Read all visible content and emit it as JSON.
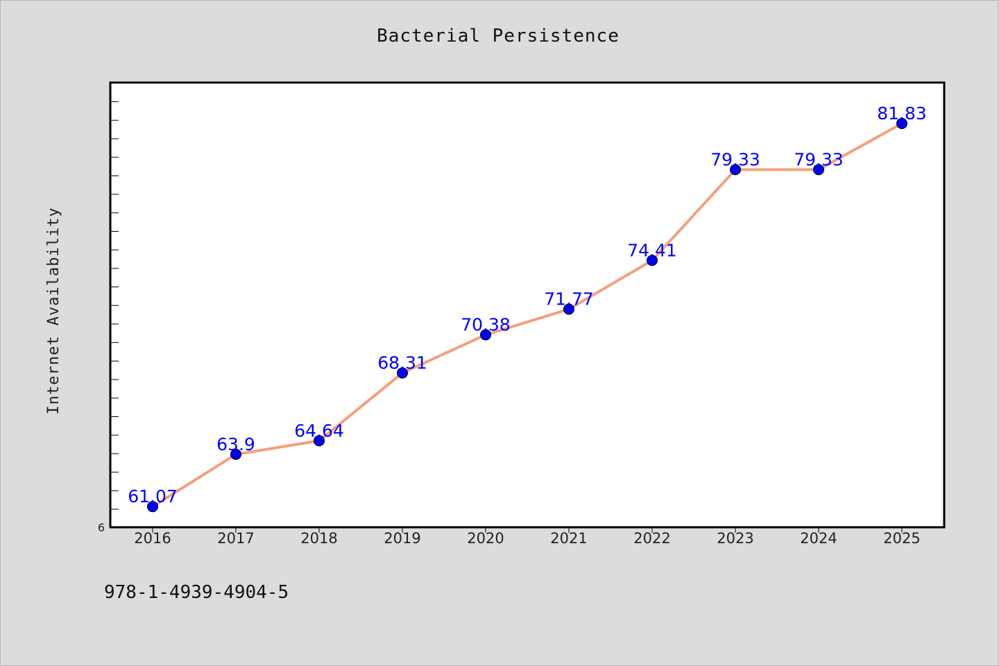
{
  "chart_data": {
    "type": "line",
    "title": "Bacterial Persistence",
    "xlabel": "",
    "ylabel": "Internet Availability",
    "categories": [
      "2016",
      "2017",
      "2018",
      "2019",
      "2020",
      "2021",
      "2022",
      "2023",
      "2024",
      "2025"
    ],
    "series": [
      {
        "values": [
          61.07,
          63.9,
          64.64,
          68.31,
          70.38,
          71.77,
          74.41,
          79.33,
          79.33,
          81.83
        ],
        "data_labels": [
          "61.07",
          "63.9",
          "64.64",
          "68.31",
          "70.38",
          "71.77",
          "74.41",
          "79.33",
          "79.33",
          "81.83"
        ],
        "line_color": "#f4a07a",
        "marker_color": "#0000ff"
      }
    ],
    "ylim": [
      59.95,
      84.05
    ],
    "ytick_min_label": "6",
    "grid": false,
    "legend": "none",
    "plot_background": "#ffffff",
    "figure_background": "#dcdcdc"
  },
  "footer": {
    "isbn": "978-1-4939-4904-5"
  }
}
